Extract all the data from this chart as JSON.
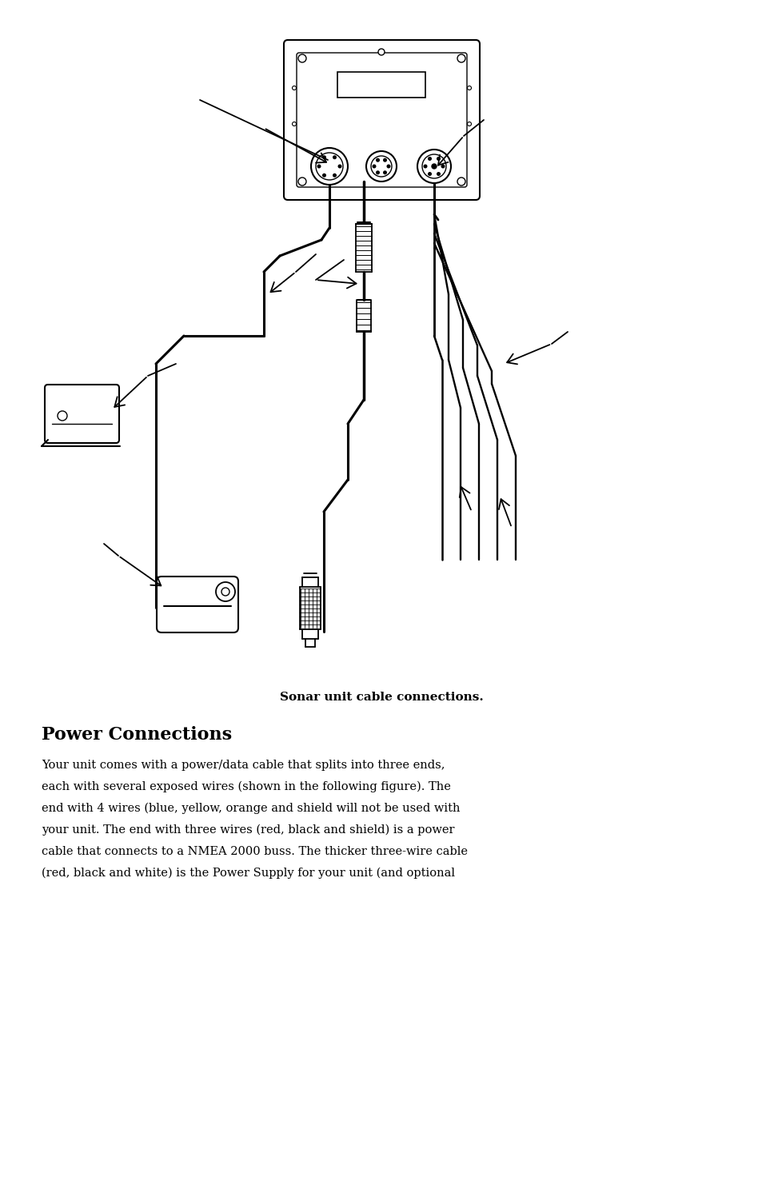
{
  "bg_color": "#ffffff",
  "fig_width": 9.54,
  "fig_height": 14.87,
  "caption_text": "Sonar unit cable connections.",
  "heading_text": "Power Connections",
  "body_text": "Your unit comes with a power/data cable that splits into three ends,\neach with several exposed wires (shown in the following figure). The\nend with 4 wires (blue, yellow, orange and shield will not be used with\nyour unit. The end with three wires (red, black and shield) is a power\ncable that connects to a NMEA 2000 buss. The thicker three-wire cable\n(red, black and white) is the Power Supply for your unit (and optional",
  "caption_fontsize": 10.5,
  "heading_fontsize": 16,
  "body_fontsize": 10.5,
  "line_color": "#000000"
}
